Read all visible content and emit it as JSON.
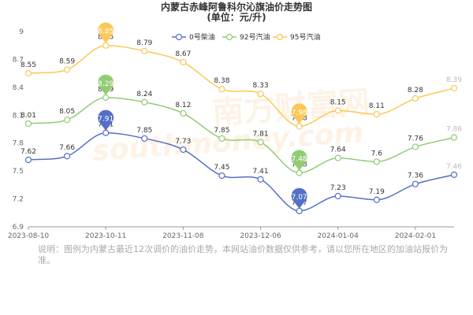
{
  "chart_data": {
    "type": "line",
    "title": "内蒙古赤峰阿鲁科尔沁旗油价走势图",
    "subtitle": "(单位：元/升)",
    "x": [
      0,
      1,
      2,
      3,
      4,
      5,
      6,
      7,
      8,
      9,
      10,
      11
    ],
    "x_tick_labels": [
      "2023-08-10",
      "2023-10-11",
      "2023-11-08",
      "2023-12-06",
      "2024-01-04",
      "2024-02-01"
    ],
    "ylim": [
      6.9,
      9.0
    ],
    "y_ticks": [
      6.9,
      7.2,
      7.5,
      7.8,
      8.1,
      8.4,
      8.7,
      9.0
    ],
    "y_tick_labels": [
      "6.9",
      "7.2",
      "7.5",
      "7.8",
      "8.1",
      "8.4",
      "8.7",
      "9"
    ],
    "grid": false,
    "legend_position": "top",
    "series": [
      {
        "name": "0号柴油",
        "color": "#5470c6",
        "values": [
          7.62,
          7.66,
          7.91,
          7.85,
          7.73,
          7.45,
          7.41,
          7.07,
          7.23,
          7.19,
          7.36,
          7.46
        ],
        "labels": [
          "7.62",
          "7.66",
          "7.91",
          "7.85",
          "7.73",
          "7.45",
          "7.41",
          "7.07",
          "7.23",
          "7.19",
          "7.36",
          "7.46"
        ]
      },
      {
        "name": "92号汽油",
        "color": "#91cc75",
        "values": [
          8.01,
          8.05,
          8.29,
          8.24,
          8.12,
          7.85,
          7.81,
          7.48,
          7.64,
          7.6,
          7.76,
          7.86
        ],
        "labels": [
          "8.01",
          "8.05",
          "8.29",
          "8.24",
          "8.12",
          "7.85",
          "7.81",
          "7.48",
          "7.64",
          "7.6",
          "7.76",
          "7.86"
        ]
      },
      {
        "name": "95号汽油",
        "color": "#fac858",
        "values": [
          8.55,
          8.59,
          8.85,
          8.79,
          8.67,
          8.38,
          8.33,
          7.98,
          8.15,
          8.11,
          8.28,
          8.39
        ],
        "labels": [
          "8.55",
          "8.59",
          "8.85",
          "8.79",
          "8.67",
          "8.38",
          "8.33",
          "7.98",
          "8.15",
          "8.11",
          "8.28",
          "8.39"
        ]
      }
    ],
    "pins": [
      {
        "series": 0,
        "point": 2,
        "label": "7.91"
      },
      {
        "series": 0,
        "point": 7,
        "label": "7.07"
      },
      {
        "series": 1,
        "point": 2,
        "label": "8.29"
      },
      {
        "series": 1,
        "point": 7,
        "label": "7.48"
      },
      {
        "series": 2,
        "point": 2,
        "label": "8.85"
      },
      {
        "series": 2,
        "point": 7,
        "label": "7.98"
      }
    ]
  },
  "watermark": {
    "text": "南方财富网",
    "subtext": "southmoney.com"
  },
  "note": "说明：图例为内蒙古最近12次调价的油价走势，本网站油价数据仅供参考，请以您所在地区的加油站报价为准。"
}
